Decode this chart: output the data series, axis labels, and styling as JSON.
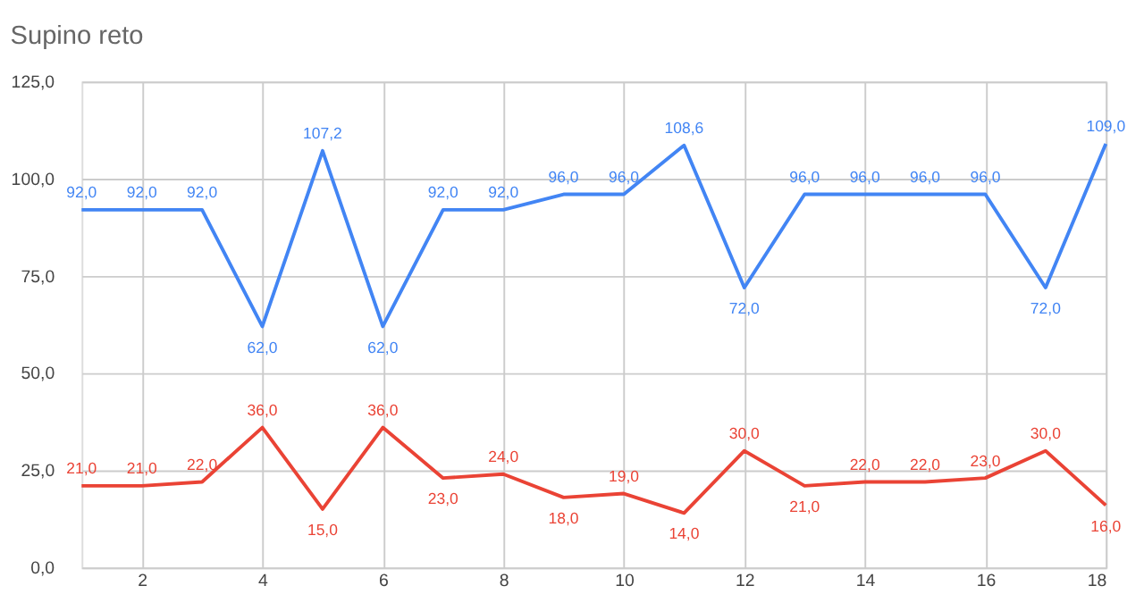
{
  "chart_data": {
    "type": "line",
    "title": "Supino reto",
    "x": [
      1,
      2,
      3,
      4,
      5,
      6,
      7,
      8,
      9,
      10,
      11,
      12,
      13,
      14,
      15,
      16,
      17,
      18
    ],
    "series": [
      {
        "color": "#4285f4",
        "values": [
          92,
          92,
          92,
          62,
          107.2,
          62,
          92,
          92,
          96,
          96,
          108.6,
          72,
          96,
          96,
          96,
          96,
          72,
          109.0
        ],
        "value_labels": [
          "92,0",
          "92,0",
          "92,0",
          "62,0",
          "107,2",
          "62,0",
          "92,0",
          "92,0",
          "96,0",
          "96,0",
          "108,6",
          "72,0",
          "96,0",
          "96,0",
          "96,0",
          "96,0",
          "72,0",
          "109,0"
        ]
      },
      {
        "color": "#ea4335",
        "values": [
          21,
          21,
          22,
          36,
          15,
          36,
          23,
          24,
          18,
          19,
          14,
          30,
          21,
          22,
          22,
          23,
          30,
          16
        ],
        "value_labels": [
          "21,0",
          "21,0",
          "22,0",
          "36,0",
          "15,0",
          "36,0",
          "23,0",
          "24,0",
          "18,0",
          "19,0",
          "14,0",
          "30,0",
          "21,0",
          "22,0",
          "22,0",
          "23,0",
          "30,0",
          "16,0"
        ]
      }
    ],
    "xlim": [
      1,
      18
    ],
    "xticks": [
      2,
      4,
      6,
      8,
      10,
      12,
      14,
      16,
      18
    ],
    "ylim": [
      0,
      125
    ],
    "yticks": [
      {
        "value": 0,
        "label": "0,0"
      },
      {
        "value": 25,
        "label": "25,0"
      },
      {
        "value": 50,
        "label": "50,0"
      },
      {
        "value": 75,
        "label": "75,0"
      },
      {
        "value": 100,
        "label": "100,0"
      },
      {
        "value": 125,
        "label": "125,0"
      }
    ],
    "grid": true,
    "marker": "none",
    "line_style": "solid"
  }
}
